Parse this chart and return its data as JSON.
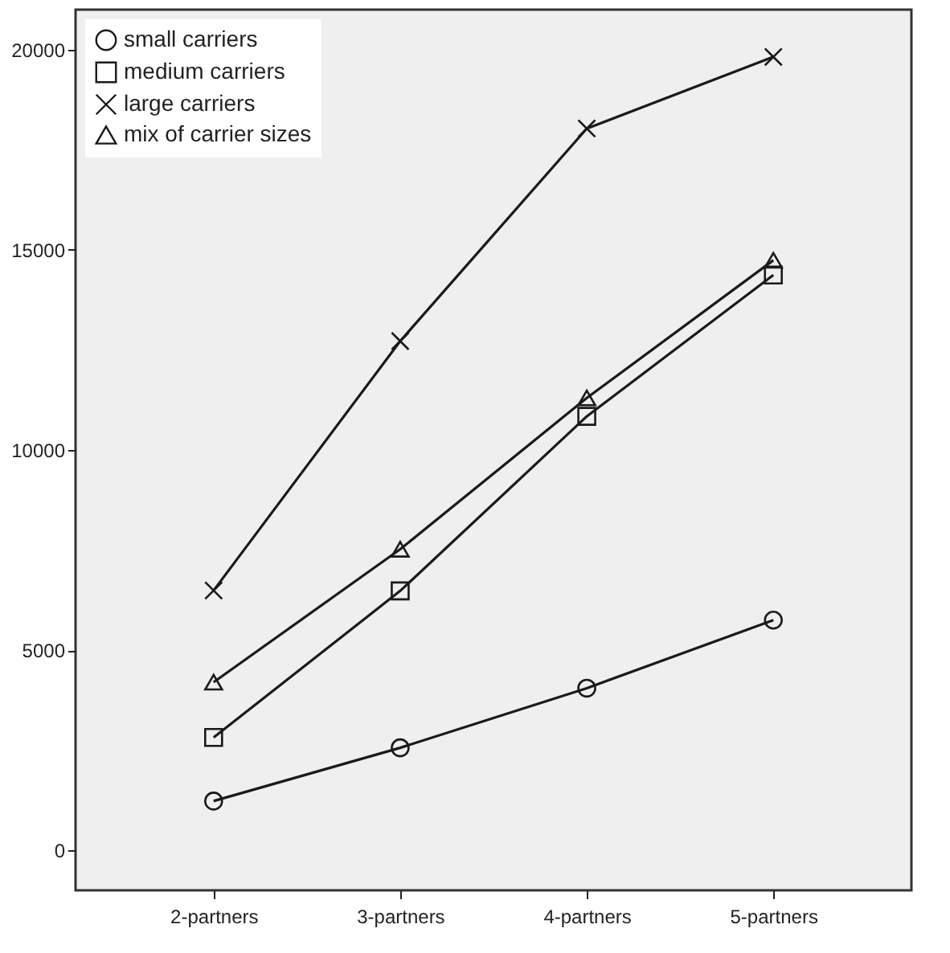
{
  "chart_data": {
    "type": "line",
    "categories": [
      "2-partners",
      "3-partners",
      "4-partners",
      "5-partners"
    ],
    "series": [
      {
        "name": "small carriers",
        "color": "#1a1a1a",
        "marker": "circle",
        "values": [
          1230,
          2560,
          4050,
          5750
        ]
      },
      {
        "name": "medium carriers",
        "color": "#1a1a1a",
        "marker": "square",
        "values": [
          2820,
          6480,
          10840,
          14370
        ]
      },
      {
        "name": "large carriers",
        "color": "#1a1a1a",
        "marker": "cross",
        "values": [
          6490,
          12720,
          18030,
          19820
        ]
      },
      {
        "name": "mix of carrier sizes",
        "color": "#1a1a1a",
        "marker": "triangle",
        "values": [
          4200,
          7520,
          11300,
          14740
        ]
      }
    ],
    "ylim": [
      -1000,
      21000
    ],
    "yticks": [
      0,
      5000,
      10000,
      15000,
      20000
    ],
    "grid": false,
    "legend": "top left"
  }
}
